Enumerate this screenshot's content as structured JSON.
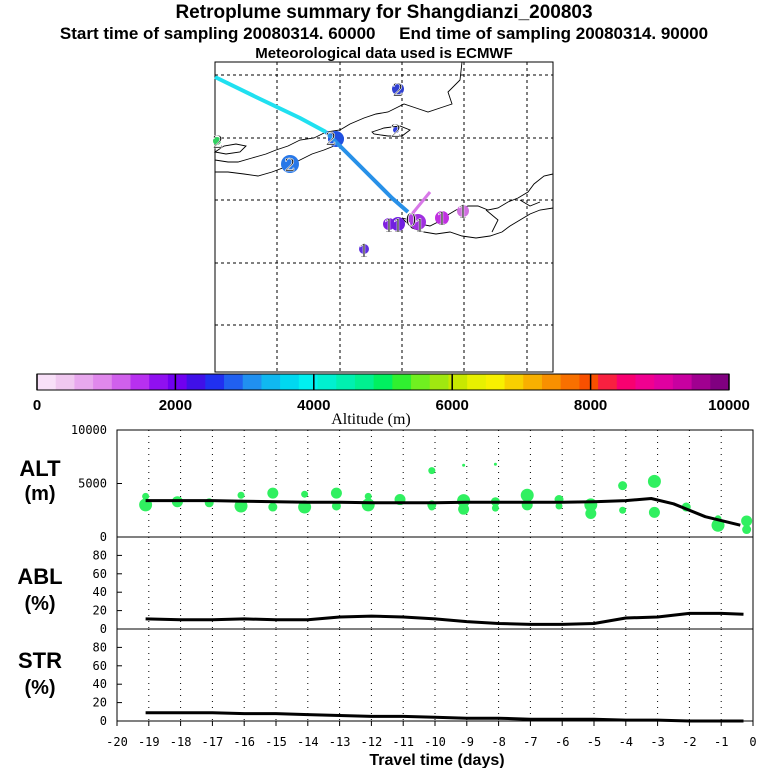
{
  "header": {
    "title": "Retroplume summary for Shangdianzi_200803",
    "sampling": "Start time of sampling 20080314. 60000     End time of sampling 20080314. 90000",
    "met": "Meteorological data used is ECMWF"
  },
  "colorbar": {
    "title": "Altitude (m)",
    "ticks": [
      "0",
      "2000",
      "4000",
      "6000",
      "8000",
      "10000"
    ],
    "colors": [
      "#f8e0f8",
      "#f0c8f0",
      "#e8a8ee",
      "#e088ec",
      "#d060ec",
      "#b830f0",
      "#9010f0",
      "#7000f0",
      "#4010e8",
      "#2030f0",
      "#2060f0",
      "#2090f0",
      "#10b8f0",
      "#00d8f0",
      "#00f0f0",
      "#00f0d0",
      "#00f0b0",
      "#00f090",
      "#00f060",
      "#30f030",
      "#70f020",
      "#a0e810",
      "#c8e800",
      "#e8f000",
      "#f8f000",
      "#f8d000",
      "#f8b000",
      "#f89000",
      "#f87000",
      "#f85000",
      "#f82040",
      "#f80070",
      "#f00090",
      "#e000a0",
      "#c800a0",
      "#a00090",
      "#800080"
    ]
  },
  "map": {
    "plume_labels": [
      {
        "text": "2",
        "color": "#2050e0"
      },
      {
        "text": "2",
        "color": "#2878e8"
      },
      {
        "text": "2",
        "color": "#2050e0"
      },
      {
        "text": "2",
        "color": "#30d060"
      },
      {
        "text": "2",
        "color": "#3040e0"
      },
      {
        "text": "1",
        "color": "#8020e0"
      },
      {
        "text": "1",
        "color": "#7020e0"
      },
      {
        "text": "1",
        "color": "#c030e0"
      },
      {
        "text": "1",
        "color": "#a030e0"
      },
      {
        "text": "1",
        "color": "#d070e0"
      },
      {
        "text": "1",
        "color": "#6030e0"
      },
      {
        "text": "0",
        "color": "#b040e0"
      }
    ]
  },
  "panels": {
    "alt": {
      "label1": "ALT",
      "label2": "(m)"
    },
    "abl": {
      "label1": "ABL",
      "label2": "(%)"
    },
    "str": {
      "label1": "STR",
      "label2": "(%)"
    },
    "xlabel": "Travel time (days)"
  },
  "chart_data": [
    {
      "type": "line",
      "title": "ALT",
      "xlabel": "Travel time (days)",
      "ylabel": "(m)",
      "xlim": [
        -20,
        0
      ],
      "ylim": [
        0,
        10000
      ],
      "yticks": [
        "0",
        "5000",
        "10000"
      ],
      "xticks": [
        "-20",
        "-19",
        "-18",
        "-17",
        "-16",
        "-15",
        "-14",
        "-13",
        "-12",
        "-11",
        "-10",
        "-9",
        "-8",
        "-7",
        "-6",
        "-5",
        "-4",
        "-3",
        "-2",
        "-1",
        "0"
      ],
      "series": [
        {
          "name": "mean altitude",
          "x": [
            -19.1,
            -18,
            -17,
            -16,
            -15,
            -14,
            -13,
            -12,
            -11,
            -10,
            -9,
            -8,
            -7,
            -6,
            -5,
            -4,
            -3.2,
            -2.5,
            -1.5,
            -0.4
          ],
          "y": [
            3400,
            3400,
            3400,
            3350,
            3300,
            3250,
            3250,
            3200,
            3200,
            3200,
            3250,
            3250,
            3250,
            3250,
            3300,
            3400,
            3600,
            3100,
            1900,
            1100
          ]
        },
        {
          "name": "cluster altitudes",
          "x": [
            -19.1,
            -19.1,
            -18.1,
            -17.1,
            -16.1,
            -16.1,
            -15.1,
            -15.1,
            -14.1,
            -14.1,
            -13.1,
            -13.1,
            -12.1,
            -12.1,
            -11.1,
            -10.1,
            -10.1,
            -9.1,
            -9.1,
            -8.1,
            -8.1,
            -7.1,
            -7.1,
            -6.1,
            -6.1,
            -5.1,
            -5.1,
            -4.1,
            -4.1,
            -3.1,
            -3.1,
            -2.1,
            -1.1,
            -1.1,
            -0.2,
            -0.2,
            -10.1,
            -9.1,
            -8.1
          ],
          "y": [
            3800,
            3000,
            3300,
            3200,
            3900,
            2900,
            4100,
            2800,
            4000,
            2800,
            4100,
            2900,
            3800,
            3000,
            3500,
            3000,
            2800,
            3400,
            2600,
            3300,
            2700,
            3900,
            3000,
            3500,
            2900,
            3000,
            2200,
            4800,
            2500,
            5200,
            2300,
            2800,
            1700,
            1100,
            1500,
            700,
            6200,
            6700,
            6800
          ]
        }
      ]
    },
    {
      "type": "line",
      "title": "ABL",
      "ylabel": "(%)",
      "xlim": [
        -20,
        0
      ],
      "ylim": [
        0,
        100
      ],
      "yticks": [
        "0",
        "20",
        "40",
        "60",
        "80"
      ],
      "series": [
        {
          "name": "ABL fraction",
          "x": [
            -19.1,
            -18,
            -17,
            -16,
            -15,
            -14,
            -13,
            -12,
            -11,
            -10,
            -9,
            -8,
            -7,
            -6,
            -5,
            -4,
            -3,
            -2,
            -1,
            -0.3
          ],
          "y": [
            11,
            10,
            10,
            11,
            10,
            10,
            13,
            14,
            13,
            11,
            8,
            6,
            5,
            5,
            6,
            12,
            13,
            17,
            17,
            16
          ]
        }
      ]
    },
    {
      "type": "line",
      "title": "STR",
      "ylabel": "(%)",
      "xlim": [
        -20,
        0
      ],
      "ylim": [
        0,
        100
      ],
      "yticks": [
        "0",
        "20",
        "40",
        "60",
        "80"
      ],
      "series": [
        {
          "name": "STR fraction",
          "x": [
            -19.1,
            -18,
            -17,
            -16,
            -15,
            -14,
            -13,
            -12,
            -11,
            -10,
            -9,
            -8,
            -7,
            -6,
            -5,
            -4,
            -3,
            -2,
            -1,
            -0.3
          ],
          "y": [
            9,
            9,
            9,
            8,
            8,
            7,
            6,
            5,
            5,
            4,
            3,
            3,
            2,
            2,
            2,
            1,
            1,
            0,
            0,
            0
          ]
        }
      ]
    }
  ]
}
